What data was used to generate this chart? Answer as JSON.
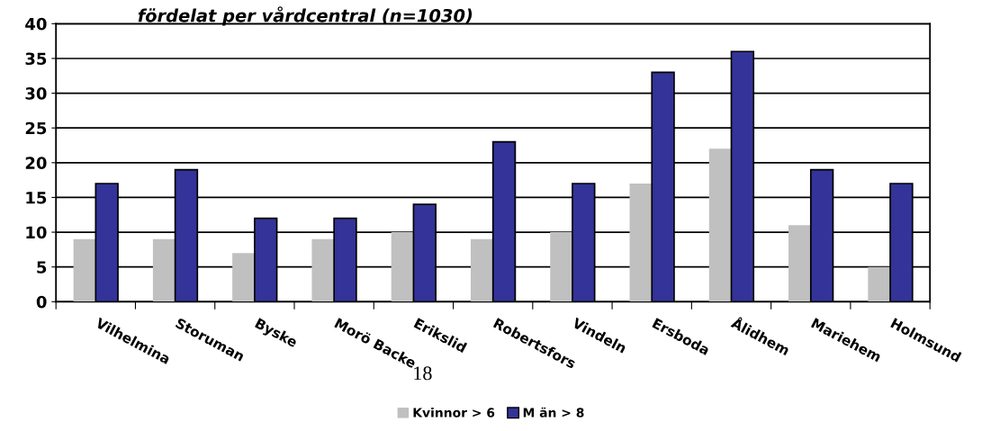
{
  "chart_data": {
    "type": "bar",
    "title": "fördelat per vårdcentral (n=1030)",
    "categories": [
      "Vilhelmina",
      "Storuman",
      "Byske",
      "Morö Backe",
      "Erikslid",
      "Robertsfors",
      "Vindeln",
      "Ersboda",
      "Ålidhem",
      "Mariehem",
      "Holmsund"
    ],
    "series": [
      {
        "name": "Kvinnor > 6",
        "color": "#c0c0c0",
        "values": [
          9,
          9,
          7,
          9,
          10,
          9,
          10,
          17,
          22,
          11,
          5
        ]
      },
      {
        "name": "M än > 8",
        "color": "#333399",
        "values": [
          17,
          19,
          12,
          12,
          14,
          23,
          17,
          33,
          36,
          19,
          17
        ]
      }
    ],
    "ylim": [
      0,
      40
    ],
    "yticks": [
      0,
      5,
      10,
      15,
      20,
      25,
      30,
      35,
      40
    ],
    "grid": "y",
    "legend": "bottom",
    "annotations": [
      "18"
    ]
  }
}
